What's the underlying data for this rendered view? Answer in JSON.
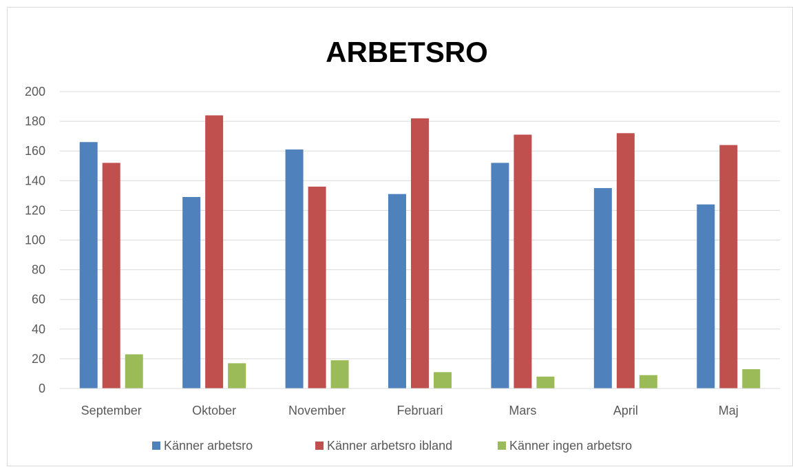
{
  "chart_data": {
    "type": "bar",
    "title": "ARBETSRO",
    "categories": [
      "September",
      "Oktober",
      "November",
      "Februari",
      "Mars",
      "April",
      "Maj"
    ],
    "series": [
      {
        "name": "Känner arbetsro",
        "color": "#4f81bd",
        "values": [
          166,
          129,
          161,
          131,
          152,
          135,
          124
        ]
      },
      {
        "name": "Känner arbetsro ibland",
        "color": "#c0504d",
        "values": [
          152,
          184,
          136,
          182,
          171,
          172,
          164
        ]
      },
      {
        "name": "Känner ingen arbetsro",
        "color": "#9bbb59",
        "values": [
          23,
          17,
          19,
          11,
          8,
          9,
          13
        ]
      }
    ],
    "xlabel": "",
    "ylabel": "",
    "ylim": [
      0,
      200
    ],
    "yticks": [
      0,
      20,
      40,
      60,
      80,
      100,
      120,
      140,
      160,
      180,
      200
    ],
    "grid": true,
    "legend_position": "bottom"
  }
}
